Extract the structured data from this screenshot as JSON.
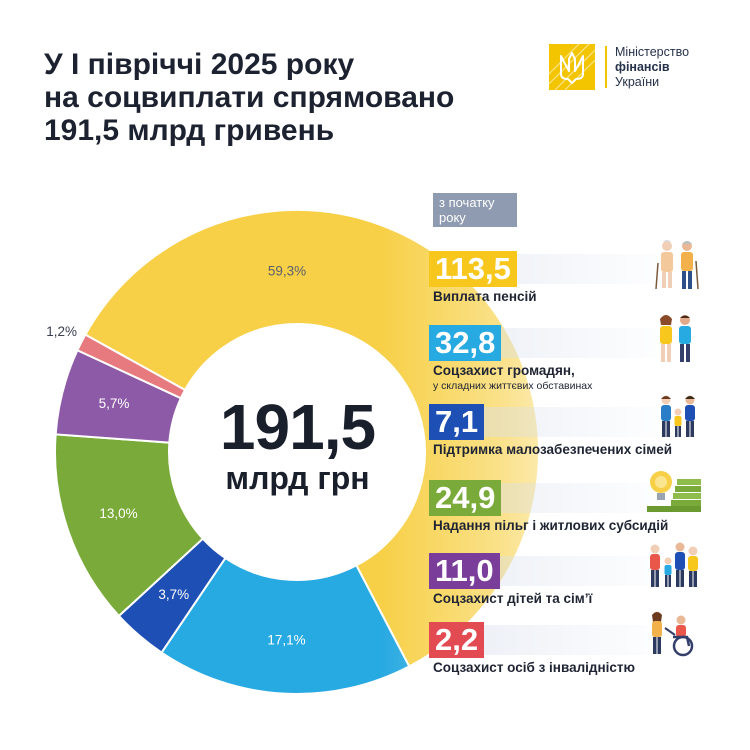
{
  "title": {
    "line1": "У І півріччі 2025 року",
    "line2": "на соцвиплати спрямовано",
    "line3": "191,5 млрд гривень"
  },
  "logo": {
    "line1": "Міністерство",
    "line2": "фінансів",
    "line3": "України",
    "icon": "trident-emblem-icon",
    "accent_color": "#f2c500"
  },
  "since_tag": {
    "line1": "з початку",
    "line2": "року"
  },
  "center": {
    "value": "191,5",
    "unit": "млрд грн"
  },
  "chart_data": {
    "type": "pie",
    "style": "donut",
    "total": 191.5,
    "total_unit": "млрд грн",
    "slices": [
      {
        "label": "Виплата пенсій",
        "value": 113.5,
        "value_text": "113,5",
        "percent": 59.3,
        "percent_text": "59,3%",
        "color": "#f7d047",
        "icon": "elderly-couple-icon"
      },
      {
        "label": "Соцзахист громадян,",
        "sublabel": "у складних життєвих обставинах",
        "value": 32.8,
        "value_text": "32,8",
        "percent": 17.1,
        "percent_text": "17,1%",
        "color": "#27a9e1",
        "icon": "family-support-icon"
      },
      {
        "label": "Підтримка малозабезпечених сімей",
        "value": 7.1,
        "value_text": "7,1",
        "percent": 3.7,
        "percent_text": "3,7%",
        "color": "#1e4fb4",
        "icon": "parents-child-icon"
      },
      {
        "label": "Надання пільг і житлових субсидій",
        "value": 24.9,
        "value_text": "24,9",
        "percent": 13.0,
        "percent_text": "13,0%",
        "color": "#7aab3a",
        "icon": "lightbulb-bills-icon"
      },
      {
        "label": "Соцзахист дітей та сім’ї",
        "value": 11.0,
        "value_text": "11,0",
        "percent": 5.7,
        "percent_text": "5,7%",
        "color": "#8d5aa8",
        "icon": "family-group-icon"
      },
      {
        "label": "Соцзахист осіб з інвалідністю",
        "value": 2.2,
        "value_text": "2,2",
        "percent": 1.2,
        "percent_text": "1,2%",
        "color": "#e67a7f",
        "icon": "wheelchair-icon"
      }
    ]
  }
}
